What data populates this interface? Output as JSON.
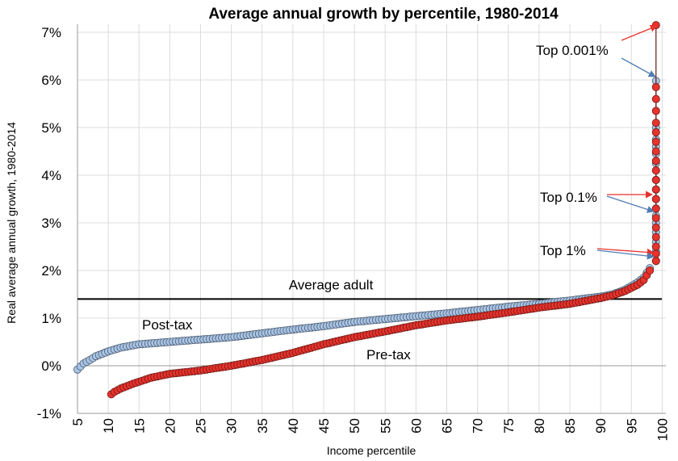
{
  "chart_data": {
    "type": "scatter",
    "title": "Average annual growth by percentile, 1980-2014",
    "xlabel": "Income percentile",
    "ylabel": "Real average annual growth, 1980-2014",
    "xlim": [
      5,
      100
    ],
    "ylim": [
      -1,
      7
    ],
    "x_ticks": [
      5,
      10,
      15,
      20,
      25,
      30,
      35,
      40,
      45,
      50,
      55,
      60,
      65,
      70,
      75,
      80,
      85,
      90,
      95,
      100
    ],
    "y_ticks": [
      -1,
      0,
      1,
      2,
      3,
      4,
      5,
      6,
      7
    ],
    "y_tick_suffix": "%",
    "reference_line": {
      "label": "Average adult",
      "value": 1.4
    },
    "series": [
      {
        "name": "Post-tax",
        "color": "#a9c4e4",
        "stroke": "#4a5a70",
        "anchors": [
          [
            5,
            -0.08
          ],
          [
            6,
            0.05
          ],
          [
            7,
            0.12
          ],
          [
            8,
            0.2
          ],
          [
            10,
            0.3
          ],
          [
            12,
            0.38
          ],
          [
            15,
            0.45
          ],
          [
            20,
            0.5
          ],
          [
            25,
            0.55
          ],
          [
            30,
            0.6
          ],
          [
            35,
            0.68
          ],
          [
            40,
            0.76
          ],
          [
            45,
            0.83
          ],
          [
            50,
            0.92
          ],
          [
            55,
            0.98
          ],
          [
            60,
            1.04
          ],
          [
            65,
            1.1
          ],
          [
            70,
            1.17
          ],
          [
            75,
            1.24
          ],
          [
            80,
            1.3
          ],
          [
            85,
            1.37
          ],
          [
            90,
            1.45
          ],
          [
            92,
            1.5
          ],
          [
            94,
            1.6
          ],
          [
            96,
            1.75
          ],
          [
            97,
            1.85
          ],
          [
            98,
            2.05
          ]
        ],
        "top_points": [
          2.2,
          2.4,
          2.6,
          2.8,
          3.0,
          3.15,
          3.3,
          3.5,
          3.7,
          3.9,
          4.1,
          4.25,
          4.45,
          4.6,
          4.75,
          5.0,
          5.98
        ]
      },
      {
        "name": "Pre-tax",
        "color": "#e8322c",
        "stroke": "#6a1a16",
        "anchors": [
          [
            10.5,
            -0.6
          ],
          [
            11,
            -0.55
          ],
          [
            12,
            -0.48
          ],
          [
            14,
            -0.38
          ],
          [
            17,
            -0.25
          ],
          [
            20,
            -0.17
          ],
          [
            25,
            -0.1
          ],
          [
            30,
            0.0
          ],
          [
            35,
            0.12
          ],
          [
            40,
            0.27
          ],
          [
            45,
            0.45
          ],
          [
            50,
            0.6
          ],
          [
            55,
            0.72
          ],
          [
            60,
            0.85
          ],
          [
            65,
            0.95
          ],
          [
            70,
            1.03
          ],
          [
            75,
            1.12
          ],
          [
            80,
            1.22
          ],
          [
            85,
            1.3
          ],
          [
            90,
            1.42
          ],
          [
            92,
            1.48
          ],
          [
            94,
            1.57
          ],
          [
            96,
            1.7
          ],
          [
            97,
            1.8
          ],
          [
            98,
            2.0
          ]
        ],
        "top_points": [
          2.2,
          2.35,
          2.5,
          2.7,
          2.9,
          3.1,
          3.3,
          3.5,
          3.7,
          3.9,
          4.1,
          4.3,
          4.5,
          4.7,
          4.9,
          5.1,
          5.35,
          5.6,
          5.85,
          7.15
        ]
      }
    ],
    "annotations": [
      {
        "label": "Post-tax"
      },
      {
        "label": "Pre-tax"
      },
      {
        "label": "Top 0.001%"
      },
      {
        "label": "Top 0.1%"
      },
      {
        "label": "Top 1%"
      }
    ]
  }
}
